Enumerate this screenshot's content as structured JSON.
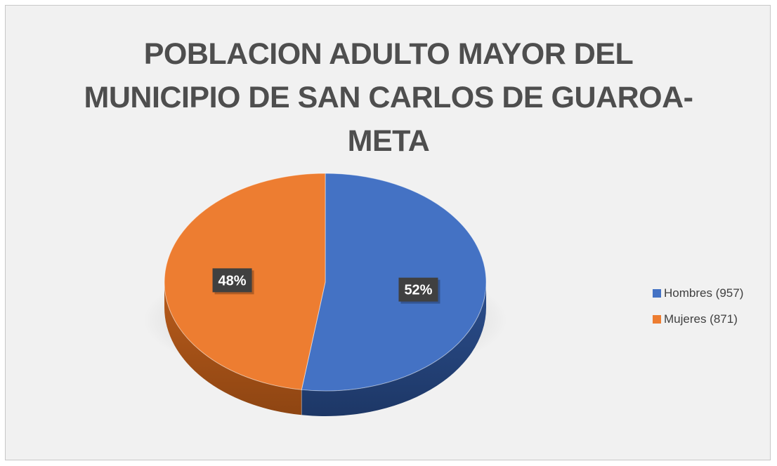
{
  "chart_data": {
    "type": "pie",
    "title_lines": [
      "POBLACION ADULTO MAYOR DEL",
      "MUNICIPIO DE SAN CARLOS DE GUAROA-",
      "META"
    ],
    "categories": [
      "Hombres (957)",
      "Mujeres (871)"
    ],
    "values": [
      957,
      871
    ],
    "data_labels": [
      "52%",
      "48%"
    ],
    "colors": [
      "#4472c4",
      "#ed7d31"
    ],
    "style": "3d",
    "legend_position": "right"
  }
}
